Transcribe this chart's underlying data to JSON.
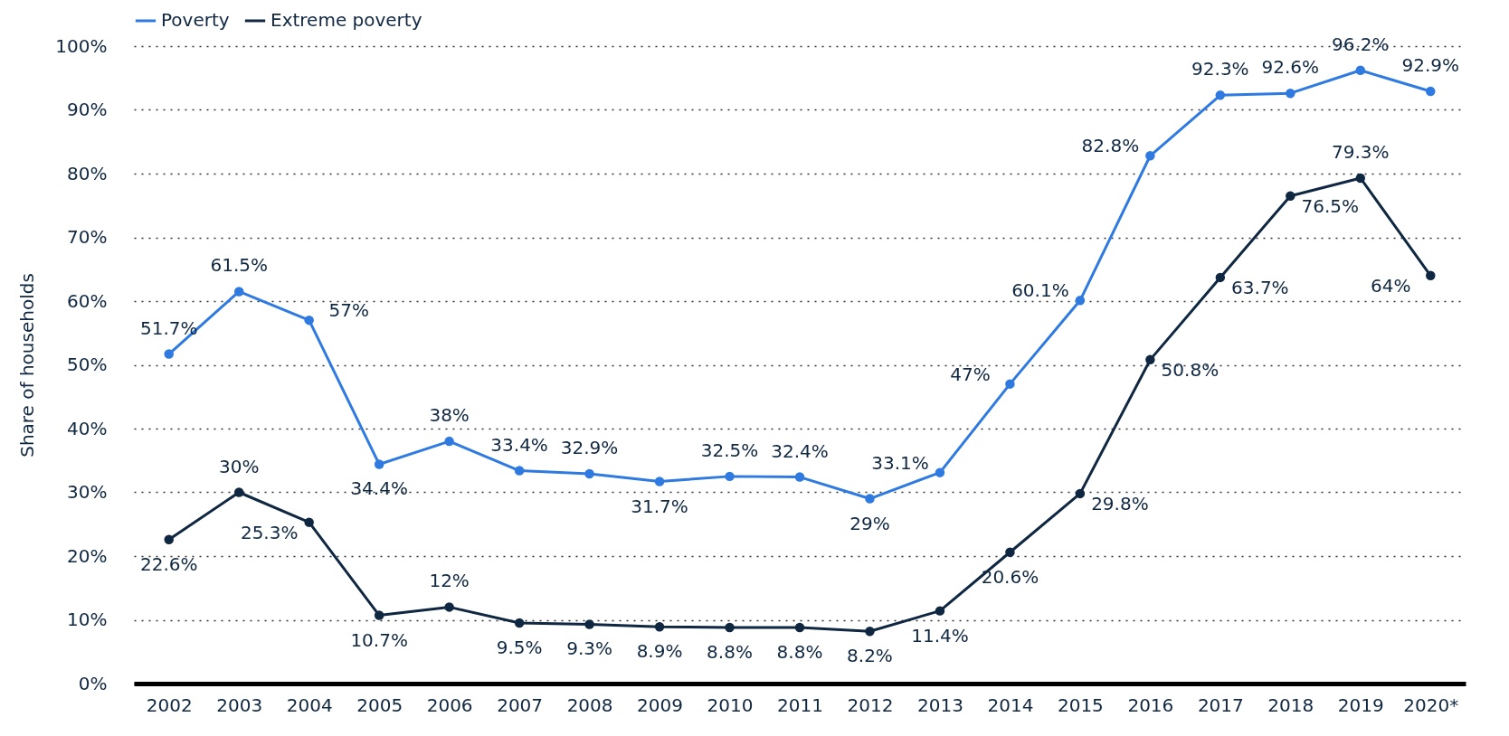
{
  "chart_data": {
    "type": "line",
    "ylabel": "Share of households",
    "categories": [
      "2002",
      "2003",
      "2004",
      "2005",
      "2006",
      "2007",
      "2008",
      "2009",
      "2010",
      "2011",
      "2012",
      "2013",
      "2014",
      "2015",
      "2016",
      "2017",
      "2018",
      "2019",
      "2020*"
    ],
    "series": [
      {
        "name": "Poverty",
        "color": "#2f7ae0",
        "values": [
          51.7,
          61.5,
          57,
          34.4,
          38,
          33.4,
          32.9,
          31.7,
          32.5,
          32.4,
          29,
          33.1,
          47,
          60.1,
          82.8,
          92.3,
          92.6,
          96.2,
          92.9
        ],
        "value_labels": [
          "51.7%",
          "61.5%",
          "57%",
          "34.4%",
          "38%",
          "33.4%",
          "32.9%",
          "31.7%",
          "32.5%",
          "32.4%",
          "29%",
          "33.1%",
          "47%",
          "60.1%",
          "82.8%",
          "92.3%",
          "92.6%",
          "96.2%",
          "92.9%"
        ]
      },
      {
        "name": "Extreme poverty",
        "color": "#0f2741",
        "values": [
          22.6,
          30,
          25.3,
          10.7,
          12,
          9.5,
          9.3,
          8.9,
          8.8,
          8.8,
          8.2,
          11.4,
          20.6,
          29.8,
          50.8,
          63.7,
          76.5,
          79.3,
          64
        ],
        "value_labels": [
          "22.6%",
          "30%",
          "25.3%",
          "10.7%",
          "12%",
          "9.5%",
          "9.3%",
          "8.9%",
          "8.8%",
          "8.8%",
          "8.2%",
          "11.4%",
          "20.6%",
          "29.8%",
          "50.8%",
          "63.7%",
          "76.5%",
          "79.3%",
          "64%"
        ]
      }
    ],
    "ylim": [
      0,
      100
    ],
    "yticks": [
      {
        "value": 0,
        "label": "0%"
      },
      {
        "value": 10,
        "label": "10%"
      },
      {
        "value": 20,
        "label": "20%"
      },
      {
        "value": 30,
        "label": "30%"
      },
      {
        "value": 40,
        "label": "40%"
      },
      {
        "value": 50,
        "label": "50%"
      },
      {
        "value": 60,
        "label": "60%"
      },
      {
        "value": 70,
        "label": "70%"
      },
      {
        "value": 80,
        "label": "80%"
      },
      {
        "value": 90,
        "label": "90%"
      },
      {
        "value": 100,
        "label": "100%"
      }
    ],
    "grid": "y",
    "legend": "top",
    "marker": "circle",
    "line_style": "solid"
  }
}
